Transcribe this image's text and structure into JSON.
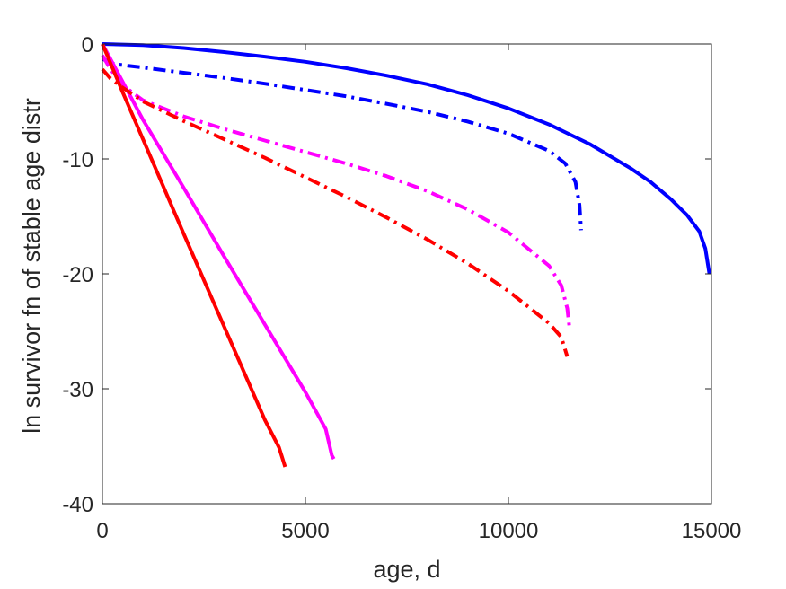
{
  "chart_data": {
    "type": "line",
    "title": "",
    "xlabel": "age, d",
    "ylabel": "ln survivor fn of stable age distr",
    "xlim": [
      0,
      15000
    ],
    "ylim": [
      -40,
      0
    ],
    "x_ticks": [
      "0",
      "5000",
      "10000",
      "15000"
    ],
    "y_ticks": [
      "0",
      "-10",
      "-20",
      "-30",
      "-40"
    ],
    "grid": false,
    "legend": "none",
    "series": [
      {
        "color": "#0000ff",
        "style": "solid",
        "points": [
          [
            0,
            0
          ],
          [
            1000,
            -0.1
          ],
          [
            2000,
            -0.35
          ],
          [
            3000,
            -0.7
          ],
          [
            4000,
            -1.1
          ],
          [
            5000,
            -1.55
          ],
          [
            6000,
            -2.1
          ],
          [
            7000,
            -2.75
          ],
          [
            8000,
            -3.5
          ],
          [
            9000,
            -4.45
          ],
          [
            10000,
            -5.6
          ],
          [
            11000,
            -7.0
          ],
          [
            12000,
            -8.7
          ],
          [
            13000,
            -10.8
          ],
          [
            13500,
            -12.0
          ],
          [
            14000,
            -13.5
          ],
          [
            14400,
            -14.9
          ],
          [
            14700,
            -16.3
          ],
          [
            14850,
            -17.8
          ],
          [
            14950,
            -20.0
          ]
        ]
      },
      {
        "color": "#0000ff",
        "style": "dashdot",
        "points": [
          [
            0,
            -1.3
          ],
          [
            300,
            -1.75
          ],
          [
            1000,
            -2.05
          ],
          [
            2000,
            -2.5
          ],
          [
            3000,
            -2.95
          ],
          [
            4000,
            -3.45
          ],
          [
            5000,
            -4.0
          ],
          [
            6000,
            -4.55
          ],
          [
            7000,
            -5.2
          ],
          [
            8000,
            -5.9
          ],
          [
            9000,
            -6.75
          ],
          [
            10000,
            -7.8
          ],
          [
            11000,
            -9.3
          ],
          [
            11400,
            -10.4
          ],
          [
            11650,
            -12.0
          ],
          [
            11750,
            -14.0
          ],
          [
            11790,
            -16.2
          ]
        ]
      },
      {
        "color": "#ff00ff",
        "style": "solid",
        "points": [
          [
            0,
            0
          ],
          [
            500,
            -3.3
          ],
          [
            1000,
            -6.6
          ],
          [
            2000,
            -12.5
          ],
          [
            3000,
            -18.5
          ],
          [
            4000,
            -24.4
          ],
          [
            5000,
            -30.3
          ],
          [
            5500,
            -33.5
          ],
          [
            5650,
            -35.8
          ],
          [
            5700,
            -36.1
          ]
        ]
      },
      {
        "color": "#ff00ff",
        "style": "dashdot",
        "points": [
          [
            0,
            -1.0
          ],
          [
            200,
            -2.2
          ],
          [
            500,
            -3.6
          ],
          [
            1000,
            -4.9
          ],
          [
            2000,
            -6.3
          ],
          [
            3000,
            -7.4
          ],
          [
            4000,
            -8.4
          ],
          [
            5000,
            -9.4
          ],
          [
            6000,
            -10.4
          ],
          [
            7000,
            -11.5
          ],
          [
            8000,
            -12.8
          ],
          [
            9000,
            -14.4
          ],
          [
            10000,
            -16.4
          ],
          [
            11000,
            -19.3
          ],
          [
            11300,
            -21.0
          ],
          [
            11450,
            -23.0
          ],
          [
            11500,
            -24.6
          ]
        ]
      },
      {
        "color": "#ff0000",
        "style": "solid",
        "points": [
          [
            0,
            0
          ],
          [
            500,
            -4.2
          ],
          [
            1000,
            -8.3
          ],
          [
            2000,
            -16.5
          ],
          [
            3000,
            -24.6
          ],
          [
            4000,
            -32.7
          ],
          [
            4350,
            -35.1
          ],
          [
            4500,
            -36.8
          ]
        ]
      },
      {
        "color": "#ff0000",
        "style": "dashdot",
        "points": [
          [
            0,
            -2.2
          ],
          [
            200,
            -3.0
          ],
          [
            500,
            -3.8
          ],
          [
            1000,
            -5.0
          ],
          [
            2000,
            -6.7
          ],
          [
            3000,
            -8.3
          ],
          [
            4000,
            -9.9
          ],
          [
            5000,
            -11.6
          ],
          [
            6000,
            -13.3
          ],
          [
            7000,
            -15.1
          ],
          [
            8000,
            -17.0
          ],
          [
            9000,
            -19.1
          ],
          [
            10000,
            -21.5
          ],
          [
            11000,
            -24.3
          ],
          [
            11300,
            -25.5
          ],
          [
            11450,
            -27.2
          ]
        ]
      }
    ]
  }
}
